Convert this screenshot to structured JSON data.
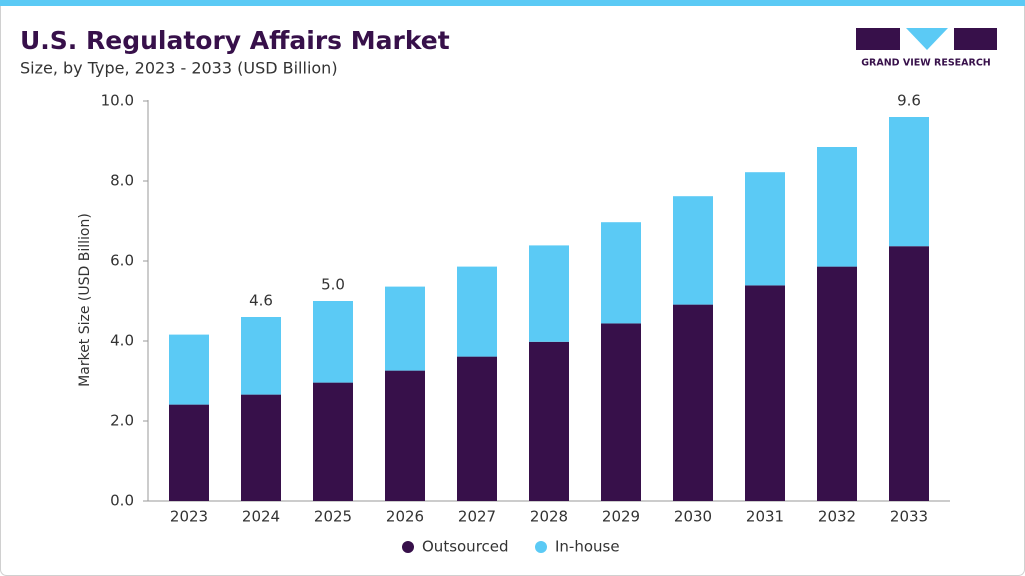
{
  "brand": "GRAND VIEW RESEARCH",
  "chart_data": {
    "type": "stacked-bar",
    "title": "U.S. Regulatory Affairs Market",
    "subtitle": "Size, by Type, 2023 - 2033 (USD Billion)",
    "y_label": "Market Size (USD Billion)",
    "categories": [
      "2023",
      "2024",
      "2025",
      "2026",
      "2027",
      "2028",
      "2029",
      "2030",
      "2031",
      "2032",
      "2033"
    ],
    "series": [
      {
        "name": "Outsourced",
        "color": "#37104a",
        "values": [
          2.41,
          2.66,
          2.96,
          3.26,
          3.61,
          3.98,
          4.44,
          4.91,
          5.39,
          5.86,
          6.37
        ]
      },
      {
        "name": "In-house",
        "color": "#5bcaf5",
        "values": [
          1.75,
          1.94,
          2.04,
          2.1,
          2.25,
          2.41,
          2.53,
          2.71,
          2.83,
          2.99,
          3.23
        ]
      }
    ],
    "totals": {
      "values": [
        null,
        4.6,
        5.0,
        null,
        null,
        null,
        null,
        null,
        null,
        null,
        9.6
      ],
      "value_labels": [
        null,
        "4.6",
        "5.0",
        null,
        null,
        null,
        null,
        null,
        null,
        null,
        "9.6"
      ]
    },
    "ylim": [
      0,
      10
    ],
    "yticks": [
      {
        "value": 0,
        "label": "0.0"
      },
      {
        "value": 2,
        "label": "2.0"
      },
      {
        "value": 4,
        "label": "4.0"
      },
      {
        "value": 6,
        "label": "6.0"
      },
      {
        "value": 8,
        "label": "8.0"
      },
      {
        "value": 10,
        "label": "10.0"
      }
    ],
    "grid": false,
    "legend": "bottom"
  }
}
